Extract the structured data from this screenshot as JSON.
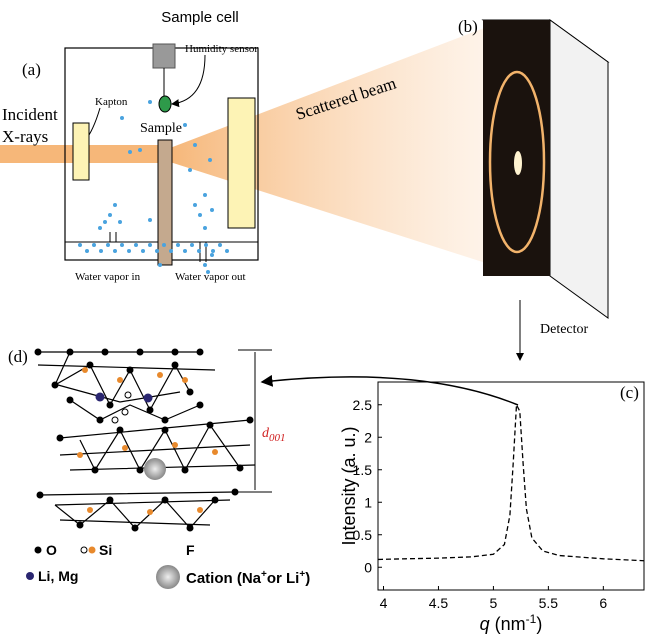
{
  "panel_labels": [
    "(a)",
    "(b)",
    "(c)",
    "(d)"
  ],
  "setup": {
    "sample_cell": "Sample cell",
    "humidity_sensor": "Humidity sensor",
    "incident": [
      "Incident",
      "X-rays"
    ],
    "kapton": "Kapton",
    "sample": "Sample",
    "vapor_in": "Water vapor in",
    "vapor_out": "Water vapor out",
    "scattered_beam": "Scattered beam",
    "detector": "Detector"
  },
  "structure": {
    "spacing_symbol": "d",
    "spacing_sub": "001",
    "legend": {
      "o": "O",
      "si": "Si",
      "f": "F",
      "li_mg": "Li, Mg",
      "cation": "Cation (Na",
      "cation_sup1": "+",
      "cation_mid": "or Li",
      "cation_sup2": "+",
      "cation_end": ")"
    }
  },
  "plot": {
    "type": "line",
    "y_label": "Intensity (a. u.)",
    "x_label": "q",
    "x_unit_open": " (nm",
    "x_unit_exp": "-1",
    "x_unit_close": ")",
    "x": [
      3.95,
      4.2,
      4.5,
      4.8,
      5.0,
      5.1,
      5.15,
      5.18,
      5.21,
      5.24,
      5.27,
      5.3,
      5.35,
      5.45,
      5.6,
      6.0,
      6.37
    ],
    "y": [
      0.12,
      0.13,
      0.14,
      0.16,
      0.2,
      0.35,
      0.8,
      1.6,
      2.5,
      2.4,
      1.6,
      0.9,
      0.45,
      0.25,
      0.18,
      0.13,
      0.1
    ],
    "xlim": [
      3.95,
      6.37
    ],
    "ylim": [
      -0.35,
      2.85
    ],
    "xticks": [
      4,
      4.5,
      5,
      5.5,
      6
    ],
    "yticks": [
      0,
      0.5,
      1,
      1.5,
      2,
      2.5
    ],
    "line_style": "dashed",
    "color": "#000000"
  }
}
